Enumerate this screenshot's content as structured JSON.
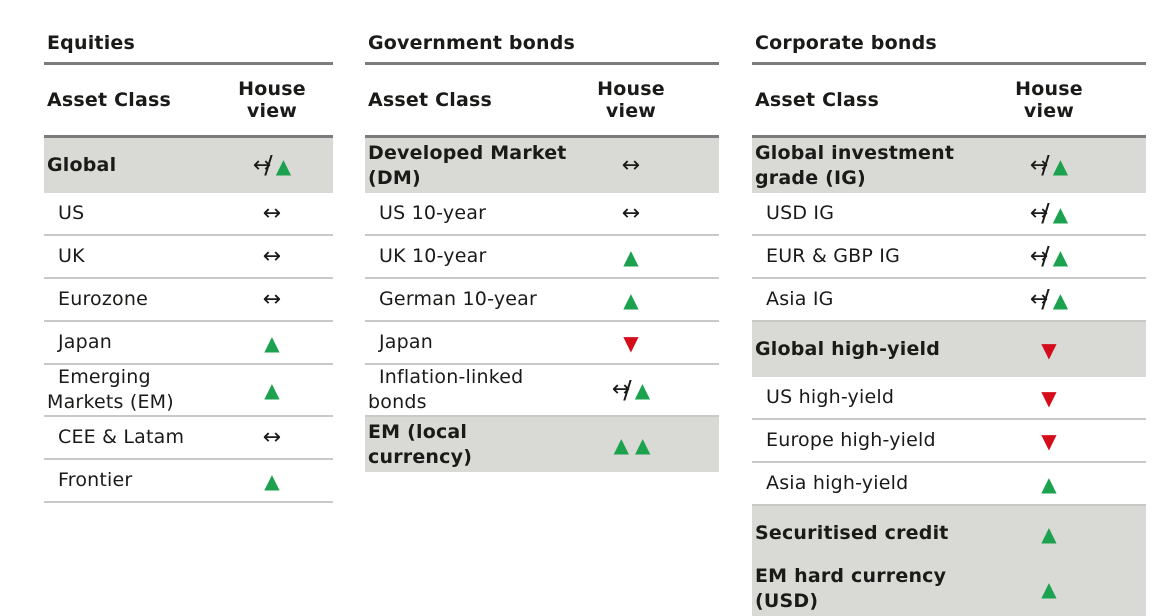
{
  "colors": {
    "text": "#1a1a18",
    "up": "#1ca24f",
    "down": "#d40d1b",
    "row_highlight": "#d9d9d5",
    "rule_dark": "#7c7c7c",
    "rule_light": "#c9c9c7"
  },
  "icons": {
    "neutral": "↔",
    "up": "▲",
    "down": "▼",
    "slash": "/"
  },
  "tables": [
    {
      "title": "Equities",
      "columns": [
        "Asset Class",
        "House view"
      ],
      "rows": [
        {
          "label": "Global",
          "view": "neutral-up",
          "highlight": true
        },
        {
          "label": "US",
          "view": "neutral",
          "highlight": false
        },
        {
          "label": "UK",
          "view": "neutral",
          "highlight": false
        },
        {
          "label": "Eurozone",
          "view": "neutral",
          "highlight": false
        },
        {
          "label": "Japan",
          "view": "up",
          "highlight": false
        },
        {
          "label": "Emerging Markets (EM)",
          "view": "up",
          "highlight": false
        },
        {
          "label": "CEE & Latam",
          "view": "neutral",
          "highlight": false
        },
        {
          "label": "Frontier",
          "view": "up",
          "highlight": false
        }
      ]
    },
    {
      "title": "Government bonds",
      "columns": [
        "Asset Class",
        "House view"
      ],
      "rows": [
        {
          "label": "Developed Market (DM)",
          "view": "neutral",
          "highlight": true
        },
        {
          "label": "US 10-year",
          "view": "neutral",
          "highlight": false
        },
        {
          "label": "UK 10-year",
          "view": "up",
          "highlight": false
        },
        {
          "label": "German 10-year",
          "view": "up",
          "highlight": false
        },
        {
          "label": "Japan",
          "view": "down",
          "highlight": false
        },
        {
          "label": "Inflation-linked bonds",
          "view": "neutral-up",
          "highlight": false
        },
        {
          "label": "EM (local currency)",
          "view": "up-up",
          "highlight": true
        }
      ]
    },
    {
      "title": "Corporate bonds",
      "columns": [
        "Asset Class",
        "House view"
      ],
      "rows": [
        {
          "label": "Global investment grade (IG)",
          "view": "neutral-up",
          "highlight": true
        },
        {
          "label": "USD IG",
          "view": "neutral-up",
          "highlight": false
        },
        {
          "label": "EUR & GBP IG",
          "view": "neutral-up",
          "highlight": false
        },
        {
          "label": "Asia IG",
          "view": "neutral-up",
          "highlight": false
        },
        {
          "label": "Global high-yield",
          "view": "down",
          "highlight": true
        },
        {
          "label": "US high-yield",
          "view": "down",
          "highlight": false
        },
        {
          "label": "Europe high-yield",
          "view": "down",
          "highlight": false
        },
        {
          "label": "Asia high-yield",
          "view": "up",
          "highlight": false
        },
        {
          "label": "Securitised credit",
          "view": "up",
          "highlight": true
        },
        {
          "label": "EM hard currency (USD)",
          "view": "up",
          "highlight": true
        }
      ]
    }
  ]
}
